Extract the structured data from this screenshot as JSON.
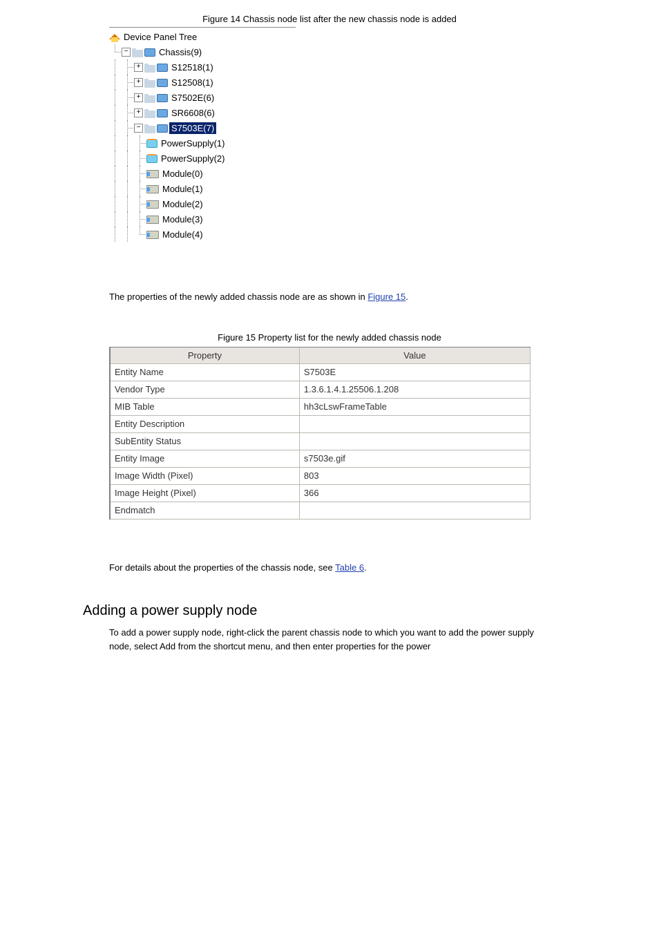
{
  "figure1": {
    "label": "Figure 14 Chassis node list after the new chassis node is added",
    "root": "Device Panel Tree",
    "chassis": "Chassis(9)",
    "nodes": [
      "S12518(1)",
      "S12508(1)",
      "S7502E(6)",
      "SR6608(6)",
      "S7503E(7)"
    ],
    "selected_index": 4,
    "children": [
      "PowerSupply(1)",
      "PowerSupply(2)",
      "Module(0)",
      "Module(1)",
      "Module(2)",
      "Module(3)",
      "Module(4)"
    ]
  },
  "section1": {
    "text": "The properties of the newly added chassis node are as shown in ",
    "link": "Figure 15",
    "after": "."
  },
  "figure2": {
    "label": "Figure 15 Property list for the newly added chassis node"
  },
  "table": {
    "columns": [
      "Property",
      "Value"
    ],
    "col_widths": [
      "45%",
      "55%"
    ],
    "rows": [
      [
        "Entity Name",
        "S7503E"
      ],
      [
        "Vendor Type",
        "1.3.6.1.4.1.25506.1.208"
      ],
      [
        "MIB Table",
        "hh3cLswFrameTable"
      ],
      [
        "Entity Description",
        ""
      ],
      [
        "SubEntity Status",
        ""
      ],
      [
        "Entity Image",
        "s7503e.gif"
      ],
      [
        "Image Width (Pixel)",
        "803"
      ],
      [
        "Image Height (Pixel)",
        "366"
      ],
      [
        "Endmatch",
        ""
      ]
    ]
  },
  "section2": {
    "text": "For details about the properties of the chassis node, see ",
    "link": "Table 6",
    "after": "."
  },
  "heading": "Adding a power supply node",
  "body_after": "To add a power supply node, right-click the parent chassis node to which you want to add the power supply node, select Add from the shortcut menu, and then enter properties for the power"
}
